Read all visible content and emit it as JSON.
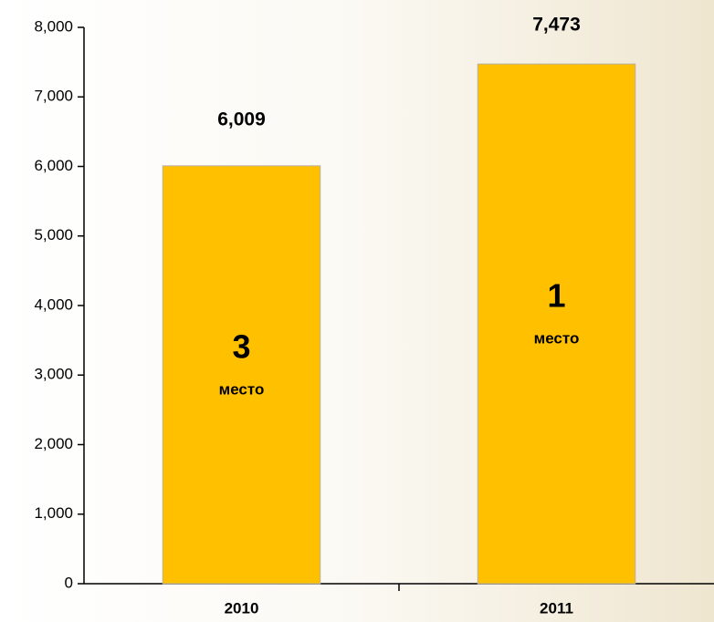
{
  "chart_data": {
    "type": "bar",
    "categories": [
      "2010",
      "2011"
    ],
    "values": [
      6009,
      7473
    ],
    "value_labels": [
      "6,009",
      "7,473"
    ],
    "annotations": [
      {
        "rank": "3",
        "label": "место"
      },
      {
        "rank": "1",
        "label": "место"
      }
    ],
    "color": "#ffc000",
    "ylim": [
      0,
      8000
    ],
    "yticks": [
      0,
      {
        "value": 1000,
        "label": "1,000"
      },
      {
        "value": 2000,
        "label": "2,000"
      },
      {
        "value": 3000,
        "label": "3,000"
      },
      {
        "value": 4000,
        "label": "4,000"
      },
      {
        "value": 5000,
        "label": "5,000"
      },
      {
        "value": 6000,
        "label": "6,000"
      },
      {
        "value": 7000,
        "label": "7,000"
      },
      {
        "value": 8000,
        "label": "8,000"
      }
    ],
    "grid": false
  }
}
